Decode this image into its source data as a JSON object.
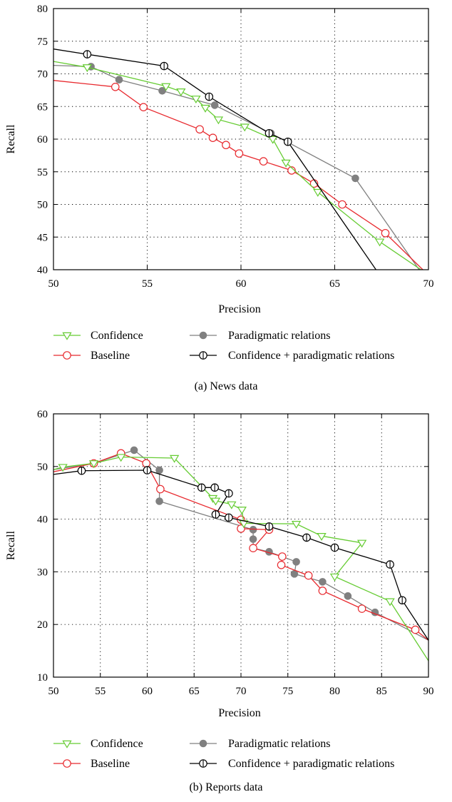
{
  "colors": {
    "confidence": "#66cc33",
    "baseline": "#e8292e",
    "paradigmatic": "#808080",
    "combined": "#000000",
    "grid": "#000000"
  },
  "chart_data": [
    {
      "type": "line",
      "caption": "(a)  News data",
      "xlabel": "Precision",
      "ylabel": "Recall",
      "xlim": [
        50,
        70
      ],
      "ylim": [
        40,
        80
      ],
      "xticks": [
        "50",
        "55",
        "60",
        "65",
        "70"
      ],
      "yticks": [
        "40",
        "45",
        "50",
        "55",
        "60",
        "65",
        "70",
        "75",
        "80"
      ],
      "grid": true,
      "legend": [
        {
          "label": "Confidence",
          "series": 0
        },
        {
          "label": "Paradigmatic relations",
          "series": 2
        },
        {
          "label": "Baseline",
          "series": 1
        },
        {
          "label": "Confidence + paradigmatic relations",
          "series": 3
        }
      ],
      "series": [
        {
          "name": "Confidence",
          "marker": "triangle-down",
          "color": "confidence",
          "points": [
            [
              50,
              71.9
            ],
            [
              51.8,
              71.0
            ],
            [
              56.0,
              68.1
            ],
            [
              56.8,
              67.3
            ],
            [
              57.6,
              66.2
            ],
            [
              58.1,
              64.8
            ],
            [
              58.8,
              63.0
            ],
            [
              60.2,
              61.9
            ],
            [
              61.7,
              60.0
            ],
            [
              62.4,
              56.4
            ],
            [
              64.1,
              51.9
            ],
            [
              67.4,
              44.3
            ],
            [
              69.6,
              40.0
            ]
          ]
        },
        {
          "name": "Baseline",
          "marker": "circle",
          "color": "baseline",
          "points": [
            [
              50,
              69.0
            ],
            [
              53.3,
              68.0
            ],
            [
              54.8,
              64.9
            ],
            [
              57.8,
              61.5
            ],
            [
              58.5,
              60.2
            ],
            [
              59.2,
              59.1
            ],
            [
              59.9,
              57.8
            ],
            [
              61.2,
              56.6
            ],
            [
              62.7,
              55.2
            ],
            [
              63.9,
              53.2
            ],
            [
              65.4,
              50.0
            ],
            [
              67.7,
              45.6
            ],
            [
              69.7,
              40.0
            ]
          ]
        },
        {
          "name": "Paradigmatic relations",
          "marker": "filled-circle",
          "color": "paradigmatic",
          "points": [
            [
              50,
              71.3
            ],
            [
              52.0,
              71.1
            ],
            [
              53.5,
              69.1
            ],
            [
              55.8,
              67.4
            ],
            [
              58.6,
              65.2
            ],
            [
              61.6,
              60.9
            ],
            [
              66.1,
              54.0
            ],
            [
              69.5,
              40.0
            ]
          ]
        },
        {
          "name": "Confidence + paradigmatic relations",
          "marker": "circle-plus",
          "color": "combined",
          "points": [
            [
              50,
              73.8
            ],
            [
              51.8,
              73.0
            ],
            [
              55.9,
              71.2
            ],
            [
              58.3,
              66.5
            ],
            [
              61.5,
              60.9
            ],
            [
              62.5,
              59.6
            ],
            [
              67.2,
              40.0
            ]
          ]
        }
      ]
    },
    {
      "type": "line",
      "caption": "(b)  Reports data",
      "xlabel": "Precision",
      "ylabel": "Recall",
      "xlim": [
        50,
        90
      ],
      "ylim": [
        10,
        60
      ],
      "xticks": [
        "50",
        "55",
        "60",
        "65",
        "70",
        "75",
        "80",
        "85",
        "90"
      ],
      "yticks": [
        "10",
        "20",
        "30",
        "40",
        "50",
        "60"
      ],
      "grid": true,
      "legend": [
        {
          "label": "Confidence",
          "series": 0
        },
        {
          "label": "Paradigmatic relations",
          "series": 2
        },
        {
          "label": "Baseline",
          "series": 1
        },
        {
          "label": "Confidence + paradigmatic relations",
          "series": 3
        }
      ],
      "series": [
        {
          "name": "Confidence",
          "marker": "triangle-down",
          "color": "confidence",
          "points": [
            [
              50,
              49.4
            ],
            [
              51.0,
              49.9
            ],
            [
              54.3,
              50.6
            ],
            [
              57.2,
              51.8
            ],
            [
              62.9,
              51.6
            ],
            [
              67.0,
              44.0
            ],
            [
              67.3,
              43.5
            ],
            [
              69.0,
              42.8
            ],
            [
              70.1,
              41.8
            ],
            [
              70.3,
              39.2
            ],
            [
              75.9,
              39.1
            ],
            [
              78.6,
              36.8
            ],
            [
              82.9,
              35.5
            ],
            [
              80.0,
              29.1
            ],
            [
              85.9,
              24.4
            ],
            [
              90,
              13.1
            ]
          ]
        },
        {
          "name": "Baseline",
          "marker": "circle",
          "color": "baseline",
          "points": [
            [
              50,
              49.0
            ],
            [
              54.3,
              50.6
            ],
            [
              57.2,
              52.5
            ],
            [
              59.9,
              50.6
            ],
            [
              61.4,
              45.7
            ],
            [
              70.0,
              39.9
            ],
            [
              70.0,
              38.2
            ],
            [
              73.0,
              38.0
            ],
            [
              71.3,
              34.5
            ],
            [
              74.4,
              32.9
            ],
            [
              74.3,
              31.3
            ],
            [
              77.2,
              29.3
            ],
            [
              78.7,
              26.4
            ],
            [
              82.9,
              23.0
            ],
            [
              88.6,
              19.0
            ],
            [
              90,
              17.0
            ]
          ]
        },
        {
          "name": "Paradigmatic relations",
          "marker": "filled-circle",
          "color": "paradigmatic",
          "points": [
            [
              50,
              49.4
            ],
            [
              54.3,
              50.6
            ],
            [
              58.6,
              53.1
            ],
            [
              61.3,
              49.3
            ],
            [
              61.3,
              43.4
            ],
            [
              71.3,
              38.0
            ],
            [
              71.3,
              36.2
            ],
            [
              71.3,
              34.5
            ],
            [
              73.0,
              33.8
            ],
            [
              75.9,
              31.9
            ],
            [
              75.7,
              29.6
            ],
            [
              78.7,
              28.1
            ],
            [
              81.4,
              25.4
            ],
            [
              84.3,
              22.3
            ],
            [
              90,
              17.0
            ]
          ]
        },
        {
          "name": "Confidence + paradigmatic relations",
          "marker": "circle-plus",
          "color": "combined",
          "points": [
            [
              50,
              48.5
            ],
            [
              53.0,
              49.2
            ],
            [
              60.0,
              49.3
            ],
            [
              65.8,
              46.0
            ],
            [
              67.2,
              46.0
            ],
            [
              68.7,
              44.9
            ],
            [
              67.3,
              40.9
            ],
            [
              68.7,
              40.3
            ],
            [
              73.0,
              38.6
            ],
            [
              77.0,
              36.5
            ],
            [
              80.0,
              34.6
            ],
            [
              85.9,
              31.4
            ],
            [
              87.2,
              24.6
            ],
            [
              90,
              17.0
            ]
          ]
        }
      ]
    }
  ]
}
